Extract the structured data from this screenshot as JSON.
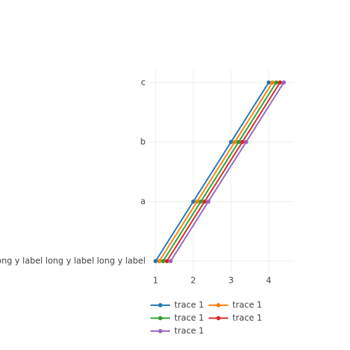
{
  "chart_data": {
    "type": "line",
    "orientation": "h",
    "categories": [
      "long y label long y label long y label",
      "a",
      "b",
      "c"
    ],
    "series": [
      {
        "name": "trace 1",
        "color": "#1f77b4",
        "values": [
          1,
          2,
          3,
          4
        ]
      },
      {
        "name": "trace 1",
        "color": "#ff7f0e",
        "values": [
          1.1,
          2.1,
          3.1,
          4.1
        ]
      },
      {
        "name": "trace 1",
        "color": "#2ca02c",
        "values": [
          1.2,
          2.2,
          3.2,
          4.2
        ]
      },
      {
        "name": "trace 1",
        "color": "#d62728",
        "values": [
          1.3,
          2.3,
          3.3,
          4.3
        ]
      },
      {
        "name": "trace 1",
        "color": "#9467bd",
        "values": [
          1.4,
          2.4,
          3.4,
          4.4
        ]
      }
    ],
    "xlim": [
      0.81,
      4.67
    ],
    "xticks": [
      1,
      2,
      3,
      4
    ],
    "grid": true,
    "legend": "bottom"
  }
}
